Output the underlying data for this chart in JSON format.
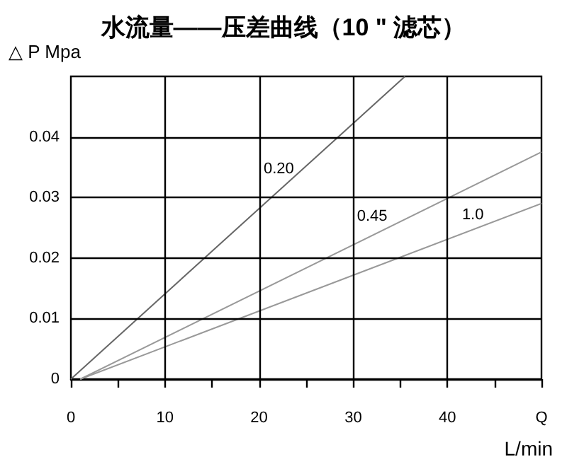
{
  "chart_data": {
    "type": "line",
    "title": "水流量——压差曲线（10 \" 滤芯）",
    "ylabel": "△ P Mpa",
    "xlabel": "L/min",
    "xlim": [
      0,
      50
    ],
    "ylim": [
      0,
      0.05
    ],
    "xticks": [
      0,
      {
        "value": 5,
        "label": null
      },
      10,
      {
        "value": 15,
        "label": null
      },
      20,
      {
        "value": 25,
        "label": null
      },
      30,
      {
        "value": 35,
        "label": null
      },
      40,
      {
        "value": 45,
        "label": null
      },
      {
        "value": 50,
        "label": "Q"
      }
    ],
    "yticks": [
      0,
      0.01,
      0.02,
      0.03,
      0.04
    ],
    "grid": true,
    "legend": false,
    "marker": "none",
    "line_style": "solid",
    "series": [
      {
        "name": "0.20",
        "color": "#666666",
        "x": [
          0,
          35.5
        ],
        "values": [
          0,
          0.05
        ]
      },
      {
        "name": "0.45",
        "color": "#999999",
        "x": [
          1,
          50
        ],
        "values": [
          0,
          0.0375
        ]
      },
      {
        "name": "1.0",
        "color": "#999999",
        "x": [
          1,
          50
        ],
        "values": [
          0,
          0.029
        ]
      }
    ]
  }
}
